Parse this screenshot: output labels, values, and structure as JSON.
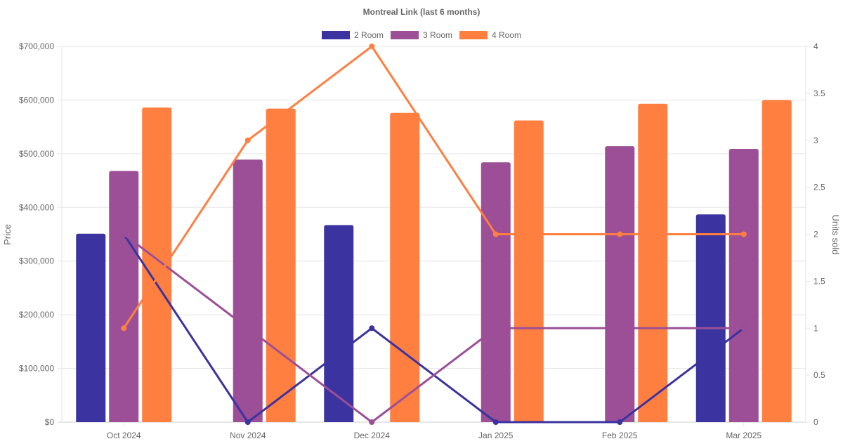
{
  "chart_data": {
    "type": "bar",
    "title": "Montreal Link (last 6 months)",
    "categories": [
      "Oct 2024",
      "Nov 2024",
      "Dec 2024",
      "Jan 2025",
      "Feb 2025",
      "Mar 2025"
    ],
    "ylabel": "Price",
    "y2label": "Units sold",
    "ylim": [
      0,
      700000
    ],
    "y2lim": [
      0,
      4
    ],
    "yticks": [
      "$0",
      "$100,000",
      "$200,000",
      "$300,000",
      "$400,000",
      "$500,000",
      "$600,000",
      "$700,000"
    ],
    "y2ticks": [
      "0",
      "0.5",
      "1",
      "1.5",
      "2",
      "2.5",
      "3",
      "3.5",
      "4"
    ],
    "grid": true,
    "legend_position": "top",
    "series": [
      {
        "name": "2 Room",
        "color": "#3A33A0",
        "prices": [
          351000,
          null,
          367000,
          null,
          null,
          387000
        ],
        "units": [
          2,
          0,
          1,
          0,
          0,
          1
        ]
      },
      {
        "name": "3 Room",
        "color": "#9C4F96",
        "prices": [
          468000,
          489000,
          null,
          484000,
          514000,
          509000
        ],
        "units": [
          2,
          1,
          0,
          1,
          1,
          1
        ]
      },
      {
        "name": "4 Room",
        "color": "#FF7F41",
        "prices": [
          586000,
          584000,
          576000,
          562000,
          593000,
          600000
        ],
        "units": [
          1,
          3,
          4,
          2,
          2,
          2
        ]
      }
    ]
  }
}
